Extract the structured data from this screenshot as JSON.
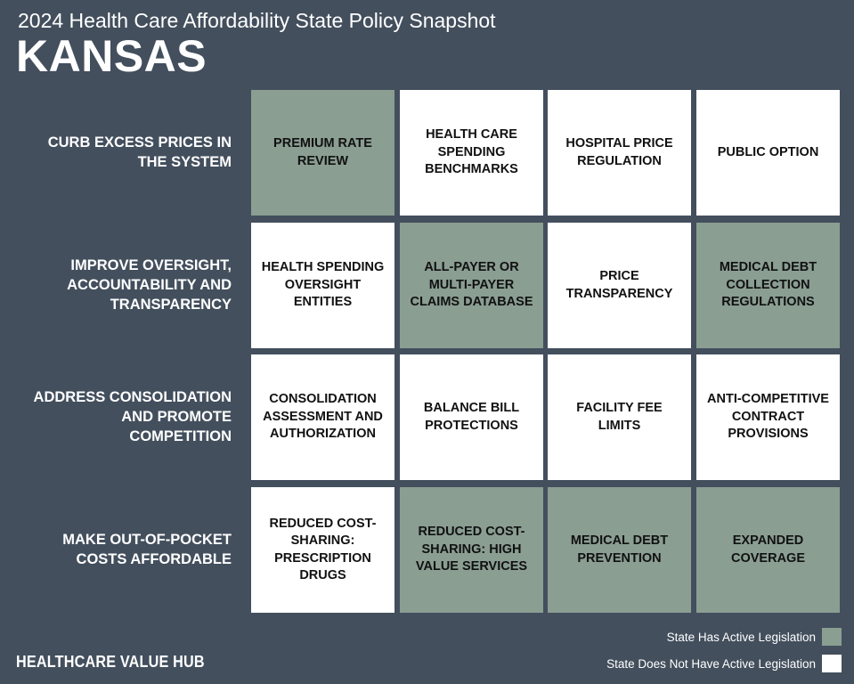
{
  "header": {
    "subtitle": "2024 Health Care Affordability State Policy Snapshot",
    "state": "KANSAS"
  },
  "colors": {
    "background": "#434f5d",
    "active": "#8a9e92",
    "inactive": "#ffffff"
  },
  "rows": [
    {
      "label": "CURB EXCESS PRICES IN THE SYSTEM",
      "cells": [
        {
          "label": "PREMIUM RATE REVIEW",
          "active": true
        },
        {
          "label": "HEALTH CARE SPENDING BENCHMARKS",
          "active": false
        },
        {
          "label": "HOSPITAL PRICE REGULATION",
          "active": false
        },
        {
          "label": "PUBLIC OPTION",
          "active": false
        }
      ]
    },
    {
      "label": "IMPROVE OVERSIGHT, ACCOUNTABILITY AND TRANSPARENCY",
      "cells": [
        {
          "label": "HEALTH SPENDING OVERSIGHT ENTITIES",
          "active": false
        },
        {
          "label": "ALL-PAYER OR MULTI-PAYER CLAIMS DATABASE",
          "active": true
        },
        {
          "label": "PRICE TRANSPARENCY",
          "active": false
        },
        {
          "label": "MEDICAL DEBT COLLECTION REGULATIONS",
          "active": true
        }
      ]
    },
    {
      "label": "ADDRESS CONSOLIDATION AND PROMOTE COMPETITION",
      "cells": [
        {
          "label": "CONSOLIDATION ASSESSMENT AND AUTHORIZATION",
          "active": false
        },
        {
          "label": "BALANCE BILL PROTECTIONS",
          "active": false
        },
        {
          "label": "FACILITY FEE LIMITS",
          "active": false
        },
        {
          "label": "ANTI-COMPETITIVE CONTRACT PROVISIONS",
          "active": false
        }
      ]
    },
    {
      "label": "MAKE OUT-OF-POCKET COSTS AFFORDABLE",
      "cells": [
        {
          "label": "REDUCED COST-SHARING: PRESCRIPTION DRUGS",
          "active": false
        },
        {
          "label": "REDUCED COST-SHARING: HIGH VALUE SERVICES",
          "active": true
        },
        {
          "label": "MEDICAL DEBT PREVENTION",
          "active": true
        },
        {
          "label": "EXPANDED COVERAGE",
          "active": true
        }
      ]
    }
  ],
  "legend": {
    "active_label": "State Has Active Legislation",
    "inactive_label": "State Does Not Have Active Legislation"
  },
  "logo": "HEALTHCARE VALUE HUB"
}
